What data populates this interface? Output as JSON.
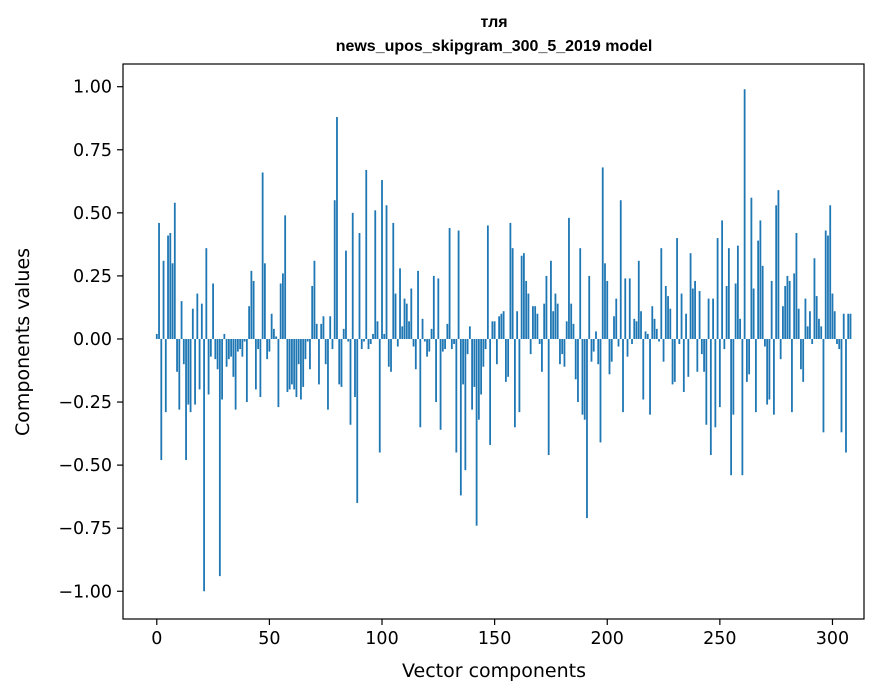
{
  "chart_data": {
    "type": "bar",
    "title": "тля",
    "subtitle": "news_upos_skipgram_300_5_2019 model",
    "xlabel": "Vector components",
    "ylabel": "Components values",
    "xlim": [
      -15,
      314
    ],
    "ylim": [
      -1.11,
      1.09
    ],
    "xticks": [
      0,
      50,
      100,
      150,
      200,
      250,
      300
    ],
    "yticks": [
      1.0,
      0.75,
      0.5,
      0.25,
      0.0,
      -0.25,
      -0.5,
      -0.75,
      -1.0
    ],
    "ytick_labels": [
      "1.00",
      "0.75",
      "0.50",
      "0.25",
      "0.00",
      "−0.25",
      "−0.50",
      "−0.75",
      "−1.00"
    ],
    "bar_color": "#1f77b4",
    "values": [
      0.02,
      0.46,
      -0.48,
      0.31,
      -0.29,
      0.41,
      0.42,
      0.3,
      0.54,
      -0.13,
      -0.28,
      0.15,
      -0.1,
      -0.48,
      -0.26,
      -0.29,
      0.12,
      -0.26,
      0.18,
      -0.2,
      0.14,
      -1.0,
      0.36,
      -0.22,
      -0.07,
      0.22,
      -0.08,
      -0.12,
      -0.94,
      -0.24,
      0.02,
      -0.11,
      -0.08,
      -0.07,
      -0.15,
      -0.28,
      -0.05,
      -0.04,
      -0.07,
      -0.01,
      -0.25,
      0.13,
      0.27,
      0.23,
      -0.2,
      -0.04,
      -0.23,
      0.66,
      0.3,
      -0.08,
      -0.05,
      0.1,
      0.04,
      0.01,
      -0.27,
      0.22,
      0.26,
      0.49,
      -0.21,
      -0.2,
      -0.18,
      -0.2,
      -0.23,
      -0.1,
      -0.24,
      -0.19,
      -0.08,
      -0.01,
      -0.12,
      0.21,
      0.31,
      0.06,
      -0.18,
      0.06,
      0.09,
      -0.1,
      -0.28,
      0.09,
      -0.04,
      0.55,
      0.88,
      -0.18,
      -0.19,
      0.04,
      0.35,
      -0.01,
      -0.34,
      0.5,
      -0.23,
      -0.65,
      0.42,
      -0.04,
      -0.01,
      0.67,
      -0.04,
      -0.02,
      0.02,
      0.51,
      0.07,
      -0.45,
      0.63,
      0.02,
      0.53,
      -0.11,
      -0.13,
      0.46,
      0.18,
      -0.03,
      0.28,
      0.05,
      0.16,
      0.14,
      0.07,
      0.2,
      -0.03,
      -0.12,
      0.27,
      -0.35,
      0.08,
      -0.01,
      -0.07,
      -0.05,
      0.04,
      0.25,
      -0.25,
      0.24,
      -0.36,
      -0.05,
      -0.04,
      0.06,
      0.44,
      -0.04,
      -0.02,
      -0.45,
      0.43,
      -0.62,
      -0.18,
      -0.52,
      -0.06,
      0.05,
      -0.28,
      -0.19,
      -0.74,
      -0.32,
      -0.22,
      -0.11,
      -0.04,
      0.45,
      -0.42,
      0.07,
      0.07,
      -0.1,
      0.09,
      0.1,
      0.11,
      -0.17,
      -0.15,
      0.46,
      0.36,
      -0.35,
      0.11,
      -0.29,
      0.33,
      0.34,
      0.23,
      0.18,
      -0.06,
      0.13,
      0.13,
      0.1,
      -0.02,
      -0.13,
      0.14,
      0.25,
      -0.46,
      0.31,
      0.11,
      0.18,
      0.14,
      -0.1,
      -0.06,
      -0.11,
      0.07,
      0.48,
      0.14,
      0.06,
      -0.16,
      -0.25,
      0.36,
      -0.3,
      -0.32,
      -0.71,
      0.25,
      -0.09,
      -0.05,
      0.03,
      -0.1,
      -0.41,
      0.68,
      0.3,
      0.23,
      -0.14,
      -0.09,
      0.09,
      0.16,
      -0.03,
      0.55,
      -0.29,
      0.24,
      -0.07,
      0.24,
      -0.02,
      0.08,
      0.07,
      0.31,
      0.11,
      -0.24,
      0.03,
      0.02,
      -0.3,
      0.13,
      0.08,
      0.04,
      -0.01,
      0.36,
      -0.09,
      0.21,
      0.17,
      0.12,
      -0.18,
      -0.17,
      0.4,
      -0.02,
      0.18,
      -0.21,
      0.1,
      -0.15,
      0.34,
      0.2,
      0.23,
      -0.13,
      0.19,
      -0.06,
      -0.13,
      -0.34,
      0.16,
      -0.46,
      0.16,
      -0.35,
      0.4,
      -0.27,
      0.47,
      -0.04,
      0.21,
      0.36,
      -0.54,
      -0.3,
      0.22,
      0.37,
      0.08,
      -0.54,
      0.99,
      -0.17,
      -0.14,
      0.56,
      0.2,
      -0.29,
      0.39,
      0.47,
      0.29,
      -0.03,
      -0.26,
      -0.24,
      0.23,
      -0.3,
      0.53,
      0.59,
      -0.08,
      0.13,
      0.21,
      0.25,
      0.23,
      -0.29,
      0.26,
      0.42,
      0.12,
      -0.12,
      -0.17,
      0.16,
      0.05,
      0.11,
      -0.02,
      0.32,
      0.17,
      0.08,
      0.05,
      -0.37,
      0.43,
      0.41,
      0.53,
      0.18,
      0.11,
      -0.02,
      -0.04,
      -0.37,
      0.1,
      -0.45,
      0.1,
      0.1
    ]
  }
}
